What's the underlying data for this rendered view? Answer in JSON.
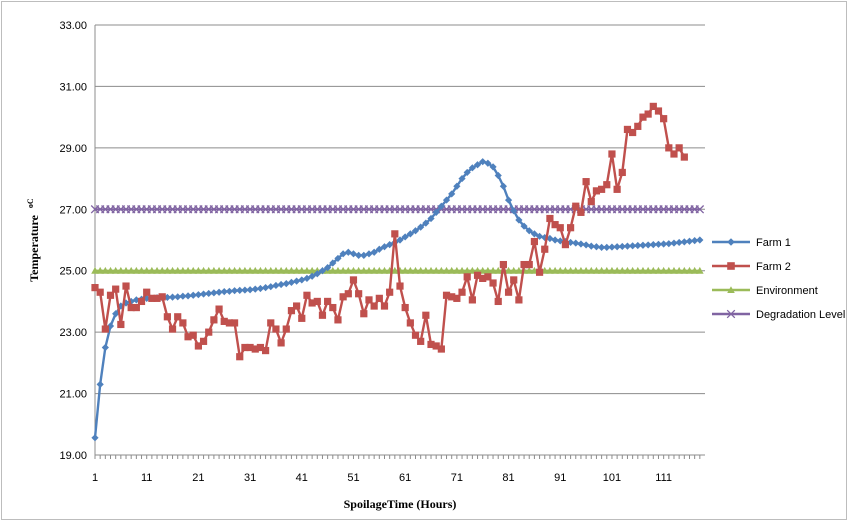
{
  "chart_data": {
    "type": "line",
    "title": "",
    "xlabel": "SpoilageTime (Hours)",
    "ylabel": "Temperature",
    "ylabel_unit": "oC",
    "ylim": [
      19,
      33
    ],
    "xlim": [
      1,
      119
    ],
    "y_ticks": [
      "19.00",
      "21.00",
      "23.00",
      "25.00",
      "27.00",
      "29.00",
      "31.00",
      "33.00"
    ],
    "x_ticks": [
      "1",
      "11",
      "21",
      "31",
      "41",
      "51",
      "61",
      "71",
      "81",
      "91",
      "101",
      "111"
    ],
    "grid": "horizontal",
    "legend_position": "right",
    "series": [
      {
        "name": "Farm 1",
        "color": "#4f81bd",
        "marker": "diamond",
        "x": [
          1,
          2,
          3,
          4,
          5,
          6,
          7,
          8,
          9,
          10,
          11,
          12,
          13,
          14,
          15,
          16,
          17,
          18,
          19,
          20,
          21,
          22,
          23,
          24,
          25,
          26,
          27,
          28,
          29,
          30,
          31,
          32,
          33,
          34,
          35,
          36,
          37,
          38,
          39,
          40,
          41,
          42,
          43,
          44,
          45,
          46,
          47,
          48,
          49,
          50,
          51,
          52,
          53,
          54,
          55,
          56,
          57,
          58,
          59,
          60,
          61,
          62,
          63,
          64,
          65,
          66,
          67,
          68,
          69,
          70,
          71,
          72,
          73,
          74,
          75,
          76,
          77,
          78,
          79,
          80,
          81,
          82,
          83,
          84,
          85,
          86,
          87,
          88,
          89,
          90,
          91,
          92,
          93,
          94,
          95,
          96,
          97,
          98,
          99,
          100,
          101,
          102,
          103,
          104,
          105,
          106,
          107,
          108,
          109,
          110,
          111,
          112,
          113,
          114,
          115,
          116,
          117,
          118
        ],
        "values": [
          19.56,
          21.3,
          22.5,
          23.2,
          23.6,
          23.85,
          23.95,
          24.0,
          24.05,
          24.07,
          24.1,
          24.1,
          24.12,
          24.12,
          24.13,
          24.14,
          24.15,
          24.17,
          24.18,
          24.2,
          24.22,
          24.24,
          24.26,
          24.28,
          24.3,
          24.32,
          24.33,
          24.35,
          24.36,
          24.37,
          24.38,
          24.4,
          24.42,
          24.45,
          24.48,
          24.52,
          24.55,
          24.58,
          24.62,
          24.66,
          24.7,
          24.75,
          24.82,
          24.9,
          25.0,
          25.1,
          25.25,
          25.4,
          25.55,
          25.6,
          25.55,
          25.5,
          25.5,
          25.55,
          25.6,
          25.7,
          25.78,
          25.85,
          25.92,
          26.0,
          26.1,
          26.2,
          26.3,
          26.42,
          26.55,
          26.7,
          26.9,
          27.1,
          27.3,
          27.5,
          27.75,
          28.0,
          28.2,
          28.35,
          28.45,
          28.55,
          28.5,
          28.38,
          28.1,
          27.75,
          27.3,
          26.95,
          26.65,
          26.45,
          26.3,
          26.2,
          26.12,
          26.08,
          26.05,
          26.0,
          25.97,
          25.95,
          25.92,
          25.9,
          25.87,
          25.84,
          25.8,
          25.78,
          25.76,
          25.76,
          25.77,
          25.78,
          25.79,
          25.8,
          25.81,
          25.82,
          25.83,
          25.84,
          25.85,
          25.86,
          25.87,
          25.88,
          25.9,
          25.92,
          25.94,
          25.96,
          25.98,
          26.0
        ]
      },
      {
        "name": "Farm 2",
        "color": "#c0504d",
        "marker": "square",
        "x": [
          1,
          2,
          3,
          4,
          5,
          6,
          7,
          8,
          9,
          10,
          11,
          12,
          13,
          14,
          15,
          16,
          17,
          18,
          19,
          20,
          21,
          22,
          23,
          24,
          25,
          26,
          27,
          28,
          29,
          30,
          31,
          32,
          33,
          34,
          35,
          36,
          37,
          38,
          39,
          40,
          41,
          42,
          43,
          44,
          45,
          46,
          47,
          48,
          49,
          50,
          51,
          52,
          53,
          54,
          55,
          56,
          57,
          58,
          59,
          60,
          61,
          62,
          63,
          64,
          65,
          66,
          67,
          68,
          69,
          70,
          71,
          72,
          73,
          74,
          75,
          76,
          77,
          78,
          79,
          80,
          81,
          82,
          83,
          84,
          85,
          86,
          87,
          88,
          89,
          90,
          91,
          92,
          93,
          94,
          95,
          96,
          97,
          98,
          99,
          100,
          101,
          102,
          103,
          104,
          105,
          106,
          107,
          108,
          109,
          110,
          111,
          112,
          113,
          114,
          115,
          116
        ],
        "values": [
          24.45,
          24.3,
          23.1,
          24.2,
          24.4,
          23.25,
          24.5,
          23.8,
          23.8,
          24.0,
          24.3,
          24.1,
          24.1,
          24.15,
          23.5,
          23.1,
          23.5,
          23.3,
          22.85,
          22.9,
          22.55,
          22.7,
          23.0,
          23.4,
          23.75,
          23.35,
          23.3,
          23.3,
          22.2,
          22.5,
          22.5,
          22.45,
          22.5,
          22.4,
          23.3,
          23.1,
          22.65,
          23.1,
          23.7,
          23.85,
          23.45,
          24.2,
          23.95,
          24.0,
          23.55,
          24.0,
          23.8,
          23.4,
          24.15,
          24.25,
          24.7,
          24.25,
          23.6,
          24.05,
          23.85,
          24.1,
          23.85,
          24.3,
          26.2,
          24.5,
          23.8,
          23.3,
          22.9,
          22.7,
          23.55,
          22.6,
          22.55,
          22.45,
          24.2,
          24.15,
          24.1,
          24.3,
          24.8,
          24.05,
          24.85,
          24.75,
          24.8,
          24.6,
          24.0,
          25.2,
          24.3,
          24.7,
          24.05,
          25.2,
          25.2,
          25.95,
          24.95,
          25.7,
          26.7,
          26.5,
          26.4,
          25.85,
          26.4,
          27.1,
          26.9,
          27.9,
          27.25,
          27.6,
          27.65,
          27.8,
          28.8,
          27.65,
          28.2,
          29.6,
          29.5,
          29.7,
          30.0,
          30.1,
          30.35,
          30.2,
          29.95,
          29.0,
          28.8,
          29.0,
          28.7,
          null
        ]
      },
      {
        "name": "Environment",
        "color": "#9bbb59",
        "marker": "triangle",
        "constant": 25.0
      },
      {
        "name": "Degradation Level",
        "color": "#8064a2",
        "marker": "x",
        "constant": 27.0
      }
    ]
  }
}
